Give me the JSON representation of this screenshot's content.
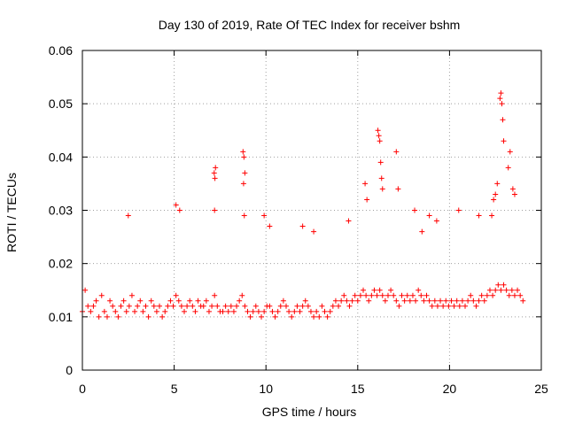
{
  "chart_data": {
    "type": "scatter",
    "title": "Day 130 of 2019, Rate Of TEC Index for receiver bshm",
    "xlabel": "GPS time / hours",
    "ylabel": "ROTI / TECUs",
    "xlim": [
      0,
      25
    ],
    "ylim": [
      0,
      0.06
    ],
    "x_ticks": [
      0,
      5,
      10,
      15,
      20,
      25
    ],
    "x_tick_labels": [
      "0",
      "5",
      "10",
      "15",
      "20",
      "25"
    ],
    "y_ticks": [
      0,
      0.01,
      0.02,
      0.03,
      0.04,
      0.05,
      0.06
    ],
    "y_tick_labels": [
      "0",
      "0.01",
      "0.02",
      "0.03",
      "0.04",
      "0.05",
      "0.06"
    ],
    "grid": true,
    "marker": "+",
    "color": "#ff0000",
    "series": [
      {
        "name": "ROTI",
        "x": [
          0.0,
          0.15,
          0.3,
          0.45,
          0.6,
          0.75,
          0.9,
          1.05,
          1.2,
          1.35,
          1.5,
          1.65,
          1.8,
          1.95,
          2.1,
          2.25,
          2.4,
          2.55,
          2.7,
          2.85,
          3.0,
          3.15,
          3.3,
          3.45,
          3.6,
          3.75,
          3.9,
          4.05,
          4.2,
          4.35,
          4.5,
          4.65,
          4.8,
          4.95,
          5.1,
          5.25,
          5.4,
          5.55,
          5.7,
          5.85,
          6.0,
          6.15,
          6.3,
          6.45,
          6.6,
          6.75,
          6.9,
          7.05,
          7.2,
          7.35,
          7.5,
          7.65,
          7.8,
          7.95,
          8.1,
          8.25,
          8.4,
          8.55,
          8.7,
          8.85,
          9.0,
          9.15,
          9.3,
          9.45,
          9.6,
          9.75,
          9.9,
          10.05,
          10.2,
          10.35,
          10.5,
          10.65,
          10.8,
          10.95,
          11.1,
          11.25,
          11.4,
          11.55,
          11.7,
          11.85,
          12.0,
          12.15,
          12.3,
          12.45,
          12.6,
          12.75,
          12.9,
          13.05,
          13.2,
          13.35,
          13.5,
          13.65,
          13.8,
          13.95,
          14.1,
          14.25,
          14.4,
          14.55,
          14.7,
          14.85,
          15.0,
          15.15,
          15.3,
          15.45,
          15.6,
          15.75,
          15.9,
          16.05,
          16.2,
          16.35,
          16.5,
          16.65,
          16.8,
          16.95,
          17.1,
          17.25,
          17.4,
          17.55,
          17.7,
          17.85,
          18.0,
          18.15,
          18.3,
          18.45,
          18.6,
          18.75,
          18.9,
          19.05,
          19.2,
          19.35,
          19.5,
          19.65,
          19.8,
          19.95,
          20.1,
          20.25,
          20.4,
          20.55,
          20.7,
          20.85,
          21.0,
          21.15,
          21.3,
          21.45,
          21.6,
          21.75,
          21.9,
          22.05,
          22.2,
          22.35,
          22.5,
          22.65,
          22.8,
          22.95,
          23.1,
          23.25,
          23.4,
          23.55,
          23.7,
          23.85,
          24.0,
          7.18,
          7.22,
          7.25,
          7.2,
          8.75,
          8.8,
          8.85,
          8.78,
          8.82,
          12.0,
          12.6,
          14.5,
          15.4,
          15.5,
          16.1,
          16.15,
          16.2,
          16.25,
          16.3,
          16.35,
          17.1,
          17.2,
          18.1,
          18.5,
          18.9,
          19.3,
          20.5,
          21.6,
          22.3,
          22.4,
          22.5,
          22.6,
          22.75,
          22.8,
          22.85,
          22.9,
          22.95,
          23.2,
          23.3,
          23.45,
          23.55,
          2.5,
          5.1,
          5.3,
          9.9,
          10.2
        ],
        "y": [
          0.011,
          0.015,
          0.012,
          0.011,
          0.012,
          0.013,
          0.01,
          0.014,
          0.011,
          0.01,
          0.013,
          0.012,
          0.011,
          0.01,
          0.012,
          0.013,
          0.011,
          0.012,
          0.014,
          0.011,
          0.012,
          0.013,
          0.011,
          0.012,
          0.01,
          0.013,
          0.012,
          0.011,
          0.012,
          0.01,
          0.011,
          0.012,
          0.013,
          0.012,
          0.014,
          0.013,
          0.012,
          0.011,
          0.012,
          0.013,
          0.012,
          0.011,
          0.013,
          0.012,
          0.012,
          0.013,
          0.011,
          0.012,
          0.014,
          0.012,
          0.011,
          0.011,
          0.012,
          0.011,
          0.012,
          0.011,
          0.012,
          0.013,
          0.014,
          0.012,
          0.011,
          0.01,
          0.011,
          0.012,
          0.011,
          0.01,
          0.011,
          0.012,
          0.012,
          0.011,
          0.01,
          0.011,
          0.012,
          0.013,
          0.012,
          0.011,
          0.01,
          0.011,
          0.012,
          0.011,
          0.012,
          0.013,
          0.012,
          0.011,
          0.01,
          0.011,
          0.01,
          0.012,
          0.011,
          0.01,
          0.011,
          0.012,
          0.013,
          0.012,
          0.013,
          0.014,
          0.013,
          0.012,
          0.013,
          0.014,
          0.013,
          0.014,
          0.015,
          0.014,
          0.013,
          0.014,
          0.015,
          0.014,
          0.015,
          0.014,
          0.013,
          0.014,
          0.015,
          0.014,
          0.013,
          0.012,
          0.014,
          0.013,
          0.014,
          0.013,
          0.014,
          0.013,
          0.015,
          0.014,
          0.013,
          0.014,
          0.013,
          0.012,
          0.013,
          0.012,
          0.013,
          0.012,
          0.013,
          0.012,
          0.013,
          0.012,
          0.013,
          0.012,
          0.013,
          0.012,
          0.013,
          0.014,
          0.013,
          0.012,
          0.013,
          0.014,
          0.013,
          0.014,
          0.015,
          0.014,
          0.015,
          0.016,
          0.015,
          0.016,
          0.015,
          0.014,
          0.015,
          0.014,
          0.015,
          0.014,
          0.013,
          0.037,
          0.036,
          0.038,
          0.03,
          0.041,
          0.04,
          0.037,
          0.035,
          0.029,
          0.027,
          0.026,
          0.028,
          0.035,
          0.032,
          0.045,
          0.044,
          0.043,
          0.039,
          0.036,
          0.034,
          0.041,
          0.034,
          0.03,
          0.026,
          0.029,
          0.028,
          0.03,
          0.029,
          0.029,
          0.032,
          0.033,
          0.035,
          0.051,
          0.052,
          0.05,
          0.047,
          0.043,
          0.038,
          0.041,
          0.034,
          0.033,
          0.029,
          0.031,
          0.03,
          0.029,
          0.027
        ]
      }
    ]
  }
}
